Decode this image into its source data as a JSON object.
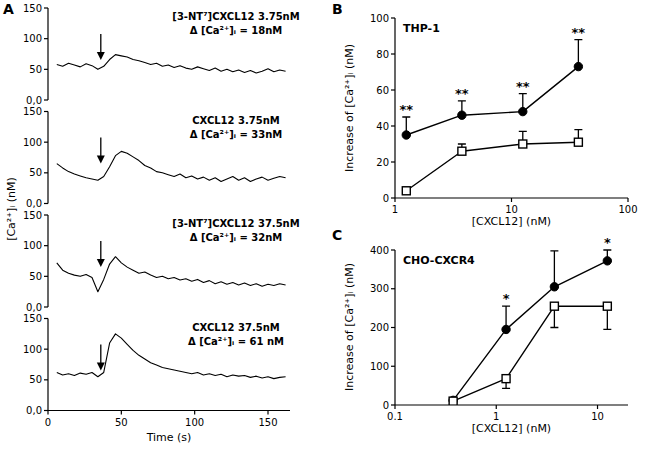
{
  "panel_labels": [
    "A",
    "B",
    "C"
  ],
  "chart_data": [
    {
      "type": "line",
      "xlim": [
        0,
        165
      ],
      "ylim": [
        0,
        150
      ],
      "yticks": [
        {
          "value": 0,
          "label": "0,0"
        },
        50,
        100,
        150
      ],
      "tick_labels": "y",
      "ylabel": "[Ca²⁺]ᵢ (nM)",
      "annotations": [
        "[3-NT⁷]CXCL12 3.75nM",
        "Δ [Ca²⁺]ᵢ = 18nM"
      ],
      "stimulus": 36,
      "x": [
        6,
        10,
        14,
        18,
        22,
        26,
        30,
        34,
        38,
        42,
        46,
        50,
        54,
        58,
        62,
        66,
        70,
        74,
        78,
        82,
        86,
        90,
        94,
        98,
        102,
        106,
        110,
        114,
        118,
        122,
        126,
        130,
        134,
        138,
        142,
        146,
        150,
        154,
        158,
        162
      ],
      "series": [
        {
          "color": "#000000",
          "marker": "none",
          "line_style": "solid",
          "values": [
            58,
            55,
            60,
            57,
            54,
            59,
            56,
            50,
            55,
            66,
            74,
            72,
            70,
            66,
            64,
            61,
            58,
            60,
            55,
            57,
            53,
            56,
            52,
            50,
            54,
            51,
            48,
            52,
            47,
            50,
            46,
            49,
            45,
            48,
            44,
            47,
            51,
            46,
            49,
            47
          ]
        }
      ]
    },
    {
      "type": "line",
      "xlim": [
        0,
        165
      ],
      "ylim": [
        0,
        150
      ],
      "yticks": [
        {
          "value": 0,
          "label": "0,0"
        },
        50,
        100,
        150
      ],
      "tick_labels": "y",
      "annotations": [
        "CXCL12 3.75nM",
        "Δ [Ca²⁺]ᵢ = 33nM"
      ],
      "stimulus": 36,
      "x": [
        6,
        10,
        14,
        18,
        22,
        26,
        30,
        34,
        38,
        42,
        46,
        50,
        54,
        58,
        62,
        66,
        70,
        74,
        78,
        82,
        86,
        90,
        94,
        98,
        102,
        106,
        110,
        114,
        118,
        122,
        126,
        130,
        134,
        138,
        142,
        146,
        150,
        154,
        158,
        162
      ],
      "series": [
        {
          "color": "#000000",
          "marker": "none",
          "line_style": "solid",
          "values": [
            65,
            58,
            52,
            48,
            45,
            42,
            40,
            38,
            44,
            60,
            78,
            85,
            82,
            76,
            70,
            62,
            58,
            52,
            50,
            47,
            44,
            48,
            42,
            45,
            40,
            43,
            38,
            42,
            36,
            40,
            44,
            38,
            42,
            36,
            40,
            43,
            38,
            41,
            44,
            42
          ]
        }
      ]
    },
    {
      "type": "line",
      "xlim": [
        0,
        165
      ],
      "ylim": [
        0,
        150
      ],
      "yticks": [
        {
          "value": 0,
          "label": "0,0"
        },
        50,
        100,
        150
      ],
      "tick_labels": "y",
      "annotations": [
        "[3-NT⁷]CXCL12 37.5nM",
        "Δ [Ca²⁺]ᵢ = 32nM"
      ],
      "stimulus": 36,
      "x": [
        6,
        10,
        14,
        18,
        22,
        26,
        30,
        34,
        38,
        42,
        46,
        50,
        54,
        58,
        62,
        66,
        70,
        74,
        78,
        82,
        86,
        90,
        94,
        98,
        102,
        106,
        110,
        114,
        118,
        122,
        126,
        130,
        134,
        138,
        142,
        146,
        150,
        154,
        158,
        162
      ],
      "series": [
        {
          "color": "#000000",
          "marker": "none",
          "line_style": "solid",
          "values": [
            72,
            60,
            55,
            52,
            50,
            53,
            48,
            25,
            45,
            70,
            82,
            72,
            65,
            60,
            55,
            57,
            52,
            48,
            50,
            46,
            48,
            44,
            46,
            42,
            45,
            40,
            43,
            38,
            41,
            37,
            40,
            36,
            39,
            35,
            38,
            34,
            37,
            35,
            38,
            36
          ]
        }
      ]
    },
    {
      "type": "line",
      "xlim": [
        0,
        165
      ],
      "xticks": [
        0,
        50,
        100,
        150
      ],
      "ylim": [
        0,
        150
      ],
      "yticks": [
        {
          "value": 0,
          "label": "0,0"
        },
        50,
        100,
        150
      ],
      "xlabel": "Time (s)",
      "annotations": [
        "CXCL12 37.5nM",
        "Δ [Ca²⁺]ᵢ = 61 nM"
      ],
      "stimulus": 36,
      "x": [
        6,
        10,
        14,
        18,
        22,
        26,
        30,
        34,
        38,
        42,
        46,
        50,
        54,
        58,
        62,
        66,
        70,
        74,
        78,
        82,
        86,
        90,
        94,
        98,
        102,
        106,
        110,
        114,
        118,
        122,
        126,
        130,
        134,
        138,
        142,
        146,
        150,
        154,
        158,
        162
      ],
      "series": [
        {
          "color": "#000000",
          "marker": "none",
          "line_style": "solid",
          "values": [
            62,
            58,
            60,
            57,
            61,
            59,
            62,
            55,
            62,
            110,
            125,
            118,
            108,
            98,
            90,
            84,
            78,
            74,
            70,
            68,
            66,
            64,
            62,
            60,
            62,
            58,
            60,
            57,
            59,
            55,
            58,
            56,
            57,
            54,
            56,
            53,
            55,
            52,
            54,
            55
          ]
        }
      ]
    },
    {
      "type": "line",
      "title": "THP-1",
      "log": "x",
      "xlim": [
        1,
        100
      ],
      "xticks": [
        1,
        10,
        100
      ],
      "ylim": [
        0,
        100
      ],
      "yticks": [
        0,
        20,
        40,
        60,
        80,
        100
      ],
      "xlabel": "[CXCL12] (nM)",
      "ylabel": "Increase of [Ca²⁺]ᵢ (nM)",
      "x": [
        1.25,
        3.75,
        12.5,
        37.5
      ],
      "series": [
        {
          "color": "#000000",
          "marker": "circle",
          "line_style": "solid",
          "values": [
            35,
            46,
            48,
            73
          ],
          "error_upper": [
            10,
            8,
            10,
            15
          ],
          "error_lower": [
            0,
            0,
            0,
            0
          ],
          "significance": [
            "**",
            "**",
            "**",
            "**"
          ]
        },
        {
          "color": "#000000",
          "marker": "square",
          "line_style": "solid",
          "values": [
            4,
            26,
            30,
            31
          ],
          "error_upper": [
            2,
            4,
            7,
            7
          ],
          "error_lower": [
            0,
            0,
            0,
            0
          ]
        }
      ]
    },
    {
      "type": "line",
      "title": "CHO-CXCR4",
      "log": "x",
      "xlim": [
        0.1,
        20
      ],
      "xticks": [
        0.1,
        1,
        10
      ],
      "ylim": [
        0,
        400
      ],
      "yticks": [
        0,
        100,
        200,
        300,
        400
      ],
      "xlabel": "[CXCL12] (nM)",
      "ylabel": "Increase of [Ca²⁺]ᵢ (nM)",
      "x": [
        0.375,
        1.25,
        3.75,
        12.5
      ],
      "series": [
        {
          "color": "#000000",
          "marker": "circle",
          "line_style": "solid",
          "values": [
            12,
            195,
            305,
            372
          ],
          "error_upper": [
            5,
            60,
            93,
            28
          ],
          "error_lower": [
            0,
            0,
            0,
            0
          ],
          "significance": [
            null,
            "*",
            null,
            "*"
          ]
        },
        {
          "color": "#000000",
          "marker": "square",
          "line_style": "solid",
          "values": [
            10,
            68,
            255,
            255
          ],
          "error_upper": [
            0,
            0,
            0,
            0
          ],
          "error_lower": [
            3,
            25,
            55,
            60
          ]
        }
      ]
    }
  ]
}
